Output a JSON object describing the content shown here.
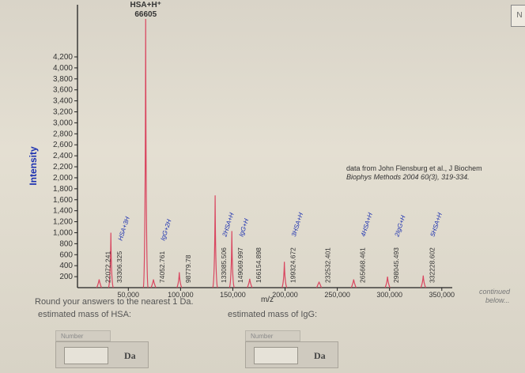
{
  "corner_button_label": "N",
  "chart_data": {
    "type": "bar",
    "title_label": "HSA+H⁺",
    "title_value": "66605",
    "xlabel": "m/z",
    "ylabel": "Intensity",
    "xlim": [
      0,
      360000
    ],
    "ylim": [
      0,
      4200
    ],
    "x_ticks": [
      {
        "value": 50000,
        "label": "50,000"
      },
      {
        "value": 100000,
        "label": "100,000"
      },
      {
        "value": 150000,
        "label": "150,000"
      },
      {
        "value": 200000,
        "label": "200,000"
      },
      {
        "value": 250000,
        "label": "250,000"
      },
      {
        "value": 300000,
        "label": "300,000"
      },
      {
        "value": 350000,
        "label": "350,000"
      }
    ],
    "y_ticks": [
      {
        "value": 200,
        "label": "200"
      },
      {
        "value": 400,
        "label": "400"
      },
      {
        "value": 600,
        "label": "600"
      },
      {
        "value": 800,
        "label": "800"
      },
      {
        "value": 1000,
        "label": "1,000"
      },
      {
        "value": 1200,
        "label": "1,200"
      },
      {
        "value": 1400,
        "label": "1,400"
      },
      {
        "value": 1600,
        "label": "1,600"
      },
      {
        "value": 1800,
        "label": "1,800"
      },
      {
        "value": 2000,
        "label": "2,000"
      },
      {
        "value": 2200,
        "label": "2,200"
      },
      {
        "value": 2400,
        "label": "2,400"
      },
      {
        "value": 2600,
        "label": "2,600"
      },
      {
        "value": 2800,
        "label": "2,800"
      },
      {
        "value": 3000,
        "label": "3,000"
      },
      {
        "value": 3200,
        "label": "3,200"
      },
      {
        "value": 3400,
        "label": "3,400"
      },
      {
        "value": 3600,
        "label": "3,600"
      },
      {
        "value": 3800,
        "label": "3,800"
      },
      {
        "value": 4000,
        "label": "4,000"
      },
      {
        "value": 4200,
        "label": "4,200"
      }
    ],
    "peaks": [
      {
        "x": 22072.241,
        "y": 150,
        "label": "22072.241",
        "ion": ""
      },
      {
        "x": 33306.325,
        "y": 1000,
        "label": "33306.325",
        "ion": "HSA+3H"
      },
      {
        "x": 66605,
        "y": 5200,
        "label": "",
        "ion": ""
      },
      {
        "x": 74052.761,
        "y": 150,
        "label": "74052.761",
        "ion": "IgG+2H"
      },
      {
        "x": 98779.78,
        "y": 280,
        "label": "98779.78",
        "ion": ""
      },
      {
        "x": 133085.506,
        "y": 1680,
        "label": "133085.506",
        "ion": "2HSA+H"
      },
      {
        "x": 149069.997,
        "y": 1030,
        "label": "149069.997",
        "ion": "IgG+H"
      },
      {
        "x": 166154.898,
        "y": 160,
        "label": "166154.898",
        "ion": ""
      },
      {
        "x": 199324.672,
        "y": 470,
        "label": "199324.672",
        "ion": "3HSA+H"
      },
      {
        "x": 232532.401,
        "y": 100,
        "label": "232532.401",
        "ion": ""
      },
      {
        "x": 265668.461,
        "y": 150,
        "label": "265668.461",
        "ion": "4HSA+H"
      },
      {
        "x": 298045.493,
        "y": 200,
        "label": "298045.493",
        "ion": "2IgG+H"
      },
      {
        "x": 332228.602,
        "y": 220,
        "label": "332228.602",
        "ion": "5HSA+H"
      }
    ],
    "citation_line1": "data from John Flensburg et al., J Biochem",
    "citation_line2": "Biophys Methods 2004 60(3), 319-334.",
    "continued_note_line1": "continued",
    "continued_note_line2": "below...",
    "colors": {
      "peak": "#d9455f",
      "axis": "#222222",
      "label_blue": "#1a2fb0",
      "text": "#333333"
    }
  },
  "instructions": {
    "round_text": "Round your answers to the nearest 1 Da.",
    "hsa_prompt": "estimated mass of HSA:",
    "igg_prompt": "estimated mass of IgG:"
  },
  "answer_hsa": {
    "tab": "Number",
    "value": "",
    "unit": "Da"
  },
  "answer_igg": {
    "tab": "Number",
    "value": "",
    "unit": "Da"
  }
}
